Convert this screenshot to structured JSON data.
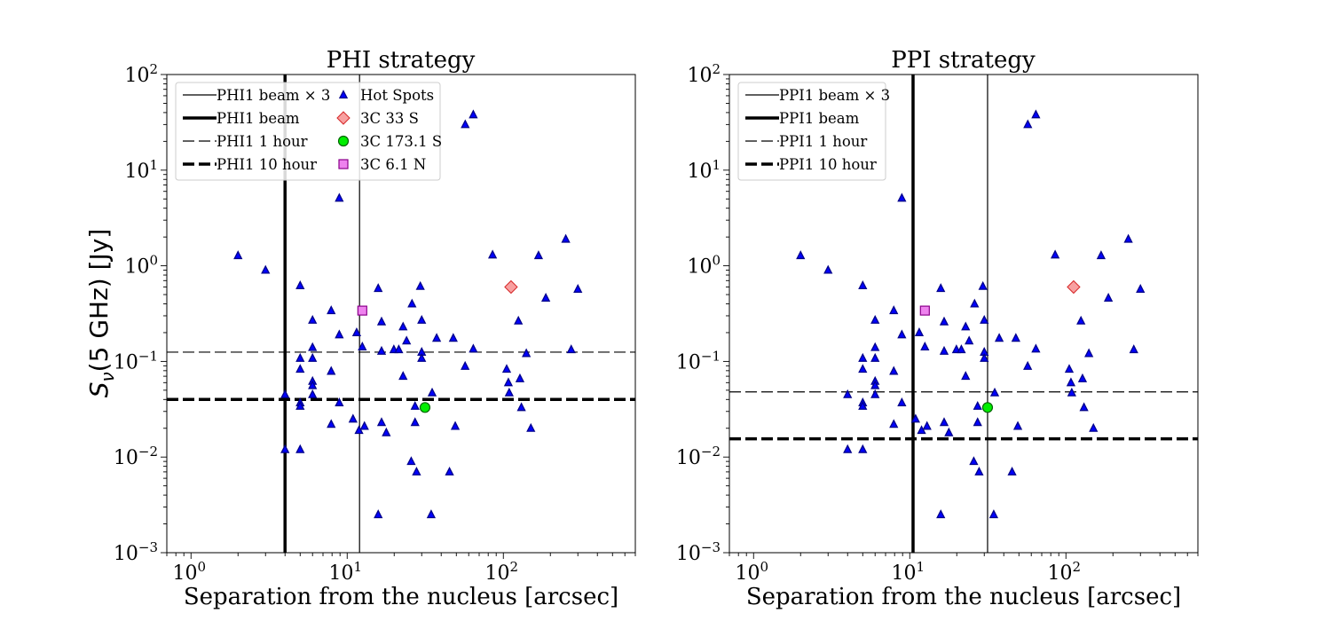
{
  "chart_data": [
    {
      "type": "scatter",
      "title": "PHI strategy",
      "xlabel": "Separation from the nucleus [arcsec]",
      "ylabel": "S_ν(5 GHz) [Jy]",
      "xscale": "log",
      "yscale": "log",
      "xlim": [
        0.7,
        700
      ],
      "ylim": [
        0.001,
        100
      ],
      "legend_position": "upper-left",
      "vlines": [
        {
          "label": "PHI1 beam",
          "x": 4.0,
          "style": "solid",
          "weight": "thick"
        },
        {
          "label": "PHI1 beam × 3",
          "x": 12.0,
          "style": "solid",
          "weight": "thin"
        }
      ],
      "hlines": [
        {
          "label": "PHI1  1 hour",
          "y": 0.125,
          "style": "dashed",
          "weight": "thin"
        },
        {
          "label": "PHI1 10 hour",
          "y": 0.04,
          "style": "dashed",
          "weight": "thick"
        }
      ],
      "legend": [
        {
          "label": "PHI1 beam × 3",
          "kind": "thin-solid"
        },
        {
          "label": "PHI1 beam",
          "kind": "thick-solid"
        },
        {
          "label": "PHI1  1 hour",
          "kind": "thin-dashed"
        },
        {
          "label": "PHI1 10 hour",
          "kind": "thick-dashed"
        },
        {
          "label": "Hot Spots",
          "kind": "triangle"
        },
        {
          "label": "3C 33 S",
          "kind": "diamond"
        },
        {
          "label": "3C 173.1 S",
          "kind": "circle"
        },
        {
          "label": "3C 6.1 N",
          "kind": "square"
        }
      ]
    },
    {
      "type": "scatter",
      "title": "PPI strategy",
      "xlabel": "Separation from the nucleus [arcsec]",
      "ylabel": "",
      "xscale": "log",
      "yscale": "log",
      "xlim": [
        0.7,
        700
      ],
      "ylim": [
        0.001,
        100
      ],
      "legend_position": "upper-left",
      "vlines": [
        {
          "label": "PPI1 beam",
          "x": 10.5,
          "style": "solid",
          "weight": "thick"
        },
        {
          "label": "PPI1 beam × 3",
          "x": 31.5,
          "style": "solid",
          "weight": "thin"
        }
      ],
      "hlines": [
        {
          "label": "PPI1  1 hour",
          "y": 0.048,
          "style": "dashed",
          "weight": "thin"
        },
        {
          "label": "PPI1 10 hour",
          "y": 0.0155,
          "style": "dashed",
          "weight": "thick"
        }
      ],
      "legend": [
        {
          "label": "PPI1 beam × 3",
          "kind": "thin-solid"
        },
        {
          "label": "PPI1 beam",
          "kind": "thick-solid"
        },
        {
          "label": "PPI1  1 hour",
          "kind": "thin-dashed"
        },
        {
          "label": "PPI1 10 hour",
          "kind": "thick-dashed"
        }
      ]
    }
  ],
  "series": {
    "hot_spots": {
      "name": "Hot Spots",
      "color": "#0000ff",
      "edge": "#00008b",
      "points": [
        [
          2.0,
          1.28
        ],
        [
          3.0,
          0.9
        ],
        [
          4.0,
          0.012
        ],
        [
          4.0,
          0.045
        ],
        [
          5.0,
          0.62
        ],
        [
          5.0,
          0.108
        ],
        [
          5.0,
          0.083
        ],
        [
          5.0,
          0.037
        ],
        [
          5.0,
          0.034
        ],
        [
          5.0,
          0.012
        ],
        [
          6.0,
          0.27
        ],
        [
          6.0,
          0.14
        ],
        [
          6.0,
          0.108
        ],
        [
          6.0,
          0.062
        ],
        [
          6.0,
          0.056
        ],
        [
          6.0,
          0.045
        ],
        [
          7.9,
          0.34
        ],
        [
          7.9,
          0.079
        ],
        [
          7.9,
          0.022
        ],
        [
          8.9,
          5.1
        ],
        [
          8.9,
          0.19
        ],
        [
          8.9,
          0.037
        ],
        [
          10.9,
          0.025
        ],
        [
          11.5,
          0.2
        ],
        [
          11.9,
          0.019
        ],
        [
          12.5,
          0.142
        ],
        [
          12.9,
          0.021
        ],
        [
          15.8,
          0.58
        ],
        [
          15.8,
          0.0025
        ],
        [
          16.6,
          0.26
        ],
        [
          16.6,
          0.128
        ],
        [
          16.6,
          0.023
        ],
        [
          17.8,
          0.018
        ],
        [
          19.9,
          0.133
        ],
        [
          21.4,
          0.133
        ],
        [
          22.8,
          0.23
        ],
        [
          22.8,
          0.07
        ],
        [
          24.0,
          0.164
        ],
        [
          25.7,
          0.009
        ],
        [
          26.0,
          0.4
        ],
        [
          27.2,
          0.034
        ],
        [
          27.2,
          0.023
        ],
        [
          27.8,
          0.007
        ],
        [
          29.4,
          0.61
        ],
        [
          30.0,
          0.27
        ],
        [
          30.0,
          0.125
        ],
        [
          30.0,
          0.108
        ],
        [
          34.5,
          0.0025
        ],
        [
          35.0,
          0.047
        ],
        [
          37.4,
          0.175
        ],
        [
          45.2,
          0.007
        ],
        [
          47.8,
          0.175
        ],
        [
          49.2,
          0.021
        ],
        [
          56.9,
          0.089
        ],
        [
          57.0,
          30.0
        ],
        [
          64.2,
          38.0
        ],
        [
          64.2,
          0.135
        ],
        [
          85.3,
          1.3
        ],
        [
          105.0,
          0.083
        ],
        [
          107.7,
          0.06
        ],
        [
          109.0,
          0.047
        ],
        [
          124.8,
          0.265
        ],
        [
          127.7,
          0.066
        ],
        [
          130.5,
          0.033
        ],
        [
          140.3,
          0.121
        ],
        [
          150.0,
          0.02
        ],
        [
          168.0,
          1.28
        ],
        [
          187.0,
          0.46
        ],
        [
          251.0,
          1.9
        ],
        [
          272.0,
          0.133
        ],
        [
          300.0,
          0.57
        ]
      ]
    },
    "src_33s": {
      "name": "3C 33 S",
      "color": "#f8a0a0",
      "edge": "#d62728",
      "x": 112.0,
      "y": 0.6
    },
    "src_173s": {
      "name": "3C 173.1 S",
      "color": "#00ee00",
      "edge": "#006400",
      "x": 31.5,
      "y": 0.033
    },
    "src_61n": {
      "name": "3C 6.1 N",
      "color": "#ee82ee",
      "edge": "#8b008b",
      "x": 12.5,
      "y": 0.34
    }
  },
  "axis_ticks": {
    "x_major": [
      {
        "base": "10",
        "exp": "0"
      },
      {
        "base": "10",
        "exp": "1"
      },
      {
        "base": "10",
        "exp": "2"
      }
    ],
    "y_major": [
      {
        "base": "10",
        "exp": "−3"
      },
      {
        "base": "10",
        "exp": "−2"
      },
      {
        "base": "10",
        "exp": "−1"
      },
      {
        "base": "10",
        "exp": "0"
      },
      {
        "base": "10",
        "exp": "1"
      },
      {
        "base": "10",
        "exp": "2"
      }
    ]
  }
}
